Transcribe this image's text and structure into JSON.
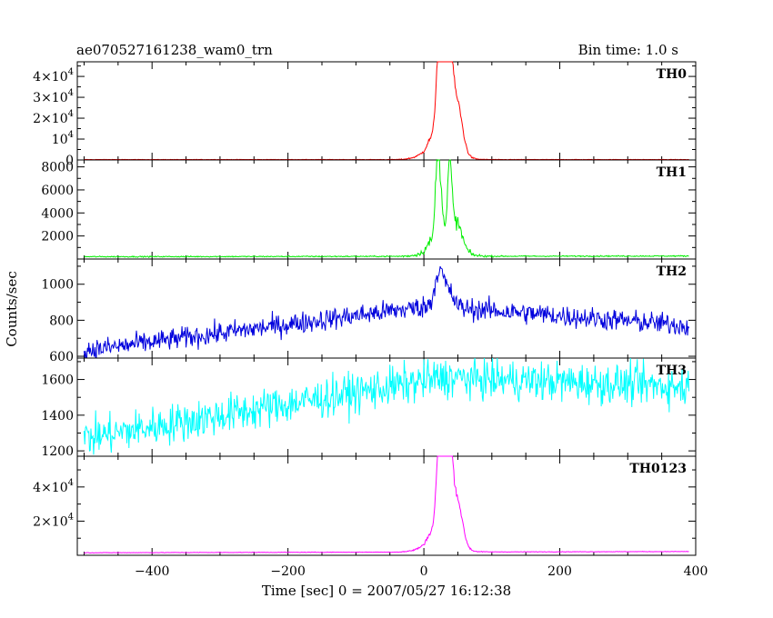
{
  "header": {
    "title": "ae070527161238_wam0_trn",
    "bin_time": "Bin time: 1.0 s"
  },
  "chart_data": {
    "type": "line",
    "xlabel": "Time [sec] 0 = 2007/05/27 16:12:38",
    "ylabel": "Counts/sec",
    "xlim": [
      -510,
      400
    ],
    "x_ticks": [
      -400,
      -200,
      0,
      200,
      400
    ],
    "x_tick_labels": [
      "−400",
      "−200",
      "0",
      "200",
      "400"
    ],
    "panels": [
      {
        "name": "TH0",
        "color": "#ff0000",
        "ylim": [
          0,
          47000
        ],
        "y_ticks": [
          0,
          10000,
          20000,
          30000,
          40000
        ],
        "y_tick_labels": [
          {
            "m": "0",
            "e": ""
          },
          {
            "m": "10",
            "e": "4"
          },
          {
            "m": "2×10",
            "e": "4"
          },
          {
            "m": "3×10",
            "e": "4"
          },
          {
            "m": "4×10",
            "e": "4"
          }
        ],
        "model": {
          "base_start": 200,
          "base_end": 200,
          "noise": 80,
          "pulse": 1,
          "peaks": [
            [
              10,
              5,
              4000
            ],
            [
              22,
              4,
              45000
            ],
            [
              30,
              4,
              33000
            ],
            [
              38,
              4,
              42000
            ],
            [
              48,
              8,
              25000
            ],
            [
              25,
              20,
              8000
            ]
          ]
        }
      },
      {
        "name": "TH1",
        "color": "#00ee00",
        "ylim": [
          0,
          8600
        ],
        "y_ticks": [
          2000,
          4000,
          6000,
          8000
        ],
        "y_tick_labels": [
          {
            "m": "2000",
            "e": ""
          },
          {
            "m": "4000",
            "e": ""
          },
          {
            "m": "6000",
            "e": ""
          },
          {
            "m": "8000",
            "e": ""
          }
        ],
        "model": {
          "base_start": 200,
          "base_end": 260,
          "noise": 50,
          "pulse": 1,
          "peaks": [
            [
              10,
              5,
              600
            ],
            [
              20,
              3,
              7800
            ],
            [
              26,
              3,
              3500
            ],
            [
              38,
              3,
              6500
            ],
            [
              48,
              8,
              2200
            ],
            [
              30,
              20,
              1200
            ]
          ]
        }
      },
      {
        "name": "TH2",
        "color": "#0000dd",
        "ylim": [
          590,
          1140
        ],
        "y_ticks": [
          600,
          800,
          1000
        ],
        "y_tick_labels": [
          {
            "m": "600",
            "e": ""
          },
          {
            "m": "800",
            "e": ""
          },
          {
            "m": "1000",
            "e": ""
          }
        ],
        "model": {
          "base_start": 630,
          "base_mid": 880,
          "base_mid_x": 10,
          "base_end": 770,
          "noise": 60,
          "pulse": 0,
          "peaks": [
            [
              22,
              6,
              180
            ],
            [
              35,
              8,
              90
            ]
          ]
        }
      },
      {
        "name": "TH3",
        "color": "#00ffff",
        "ylim": [
          1170,
          1720
        ],
        "y_ticks": [
          1200,
          1400,
          1600
        ],
        "y_tick_labels": [
          {
            "m": "1200",
            "e": ""
          },
          {
            "m": "1400",
            "e": ""
          },
          {
            "m": "1600",
            "e": ""
          }
        ],
        "model": {
          "base_start": 1270,
          "base_mid": 1610,
          "base_mid_x": 30,
          "base_end": 1560,
          "noise": 110,
          "pulse": 0,
          "peaks": []
        }
      },
      {
        "name": "TH0123",
        "color": "#ff00ff",
        "ylim": [
          0,
          58000
        ],
        "y_ticks": [
          20000,
          40000
        ],
        "y_tick_labels": [
          {
            "m": "2×10",
            "e": "4"
          },
          {
            "m": "4×10",
            "e": "4"
          }
        ],
        "model": {
          "base_start": 1500,
          "base_end": 2200,
          "noise": 150,
          "pulse": 1,
          "peaks": [
            [
              10,
              5,
              4500
            ],
            [
              22,
              4,
              52000
            ],
            [
              30,
              4,
              38000
            ],
            [
              38,
              4,
              50000
            ],
            [
              48,
              8,
              28000
            ],
            [
              25,
              20,
              9000
            ]
          ]
        }
      }
    ]
  }
}
